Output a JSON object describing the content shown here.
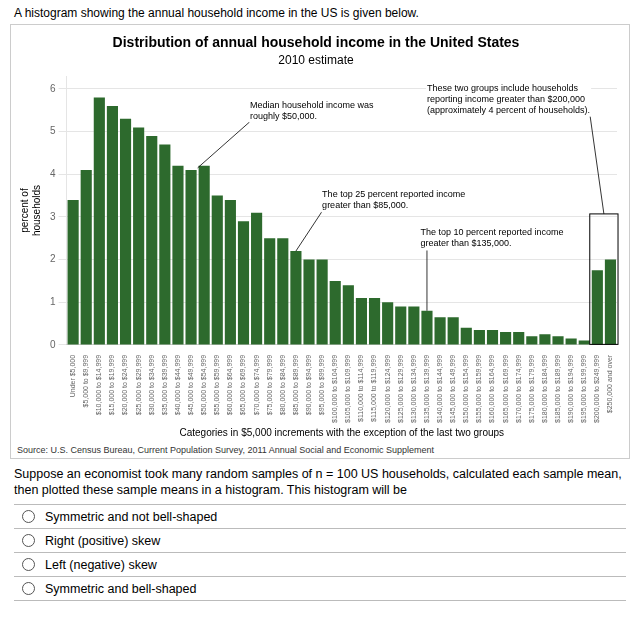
{
  "chart_data": {
    "type": "bar",
    "header": "A histogram showing the annual household income in the US is given below.",
    "title": "Distribution of annual household income in the United States",
    "subtitle": "2010 estimate",
    "ylabel": "percent of\nhouseholds",
    "xlabel": "Categories in $5,000 increments with the exception of the last two groups",
    "source": "Source: U.S. Census Bureau, Current Population Survey, 2011 Annual Social and Economic Supplement",
    "annotations": [
      "Median household income was\nroughly $50,000.",
      "The top 25 percent reported income\ngreater than $85,000.",
      "The top 10 percent reported income\ngreater than $135,000.",
      "These two groups include households\nreporting income greater than $200,000\n(approximately 4 percent of households)."
    ],
    "categories": [
      "Under $5,000",
      "$5,000 to $9,999",
      "$10,000 to $14,999",
      "$15,000 to $19,999",
      "$20,000 to $24,999",
      "$25,000 to $29,999",
      "$30,000 to $34,999",
      "$35,000 to $39,999",
      "$40,000 to $44,999",
      "$45,000 to $49,999",
      "$50,000 to $54,999",
      "$55,000 to $59,999",
      "$60,000 to $64,999",
      "$65,000 to $69,999",
      "$70,000 to $74,999",
      "$75,000 to $79,999",
      "$80,000 to $84,999",
      "$85,000 to $89,999",
      "$90,000 to $94,999",
      "$95,000 to $99,999",
      "$100,000 to $104,999",
      "$105,000 to $109,999",
      "$110,000 to $114,999",
      "$115,000 to $119,999",
      "$120,000 to $124,999",
      "$125,000 to $129,999",
      "$130,000 to $134,999",
      "$135,000 to $139,999",
      "$140,000 to $144,999",
      "$145,000 to $149,999",
      "$150,000 to $154,999",
      "$155,000 to $159,999",
      "$160,000 to $164,999",
      "$165,000 to $169,999",
      "$170,000 to $174,999",
      "$175,000 to $179,999",
      "$180,000 to $184,999",
      "$185,000 to $189,999",
      "$190,000 to $194,999",
      "$195,000 to $199,999",
      "$200,000 to $249,999",
      "$250,000 and over"
    ],
    "values": [
      3.4,
      4.1,
      5.8,
      5.6,
      5.3,
      5.1,
      4.9,
      4.7,
      4.2,
      4.1,
      4.2,
      3.5,
      3.4,
      2.9,
      3.1,
      2.5,
      2.5,
      2.2,
      2.0,
      2.0,
      1.5,
      1.4,
      1.1,
      1.1,
      1.0,
      0.9,
      0.9,
      0.8,
      0.65,
      0.65,
      0.4,
      0.35,
      0.35,
      0.3,
      0.3,
      0.2,
      0.25,
      0.2,
      0.15,
      0.1,
      1.75,
      2.0
    ],
    "color": "#2d6a2d",
    "ylim": [
      0,
      6.3
    ],
    "yticks": [
      0,
      1,
      2,
      3,
      4,
      5,
      6
    ],
    "grid": true,
    "question": "Suppose an economist took many random samples of n = 100 US households, calculated each sample mean, then plotted these sample means in a histogram.  This histogram will be",
    "choices": [
      "Symmetric and not bell-shaped",
      "Right (positive) skew",
      "Left (negative) skew",
      "Symmetric and bell-shaped"
    ]
  }
}
